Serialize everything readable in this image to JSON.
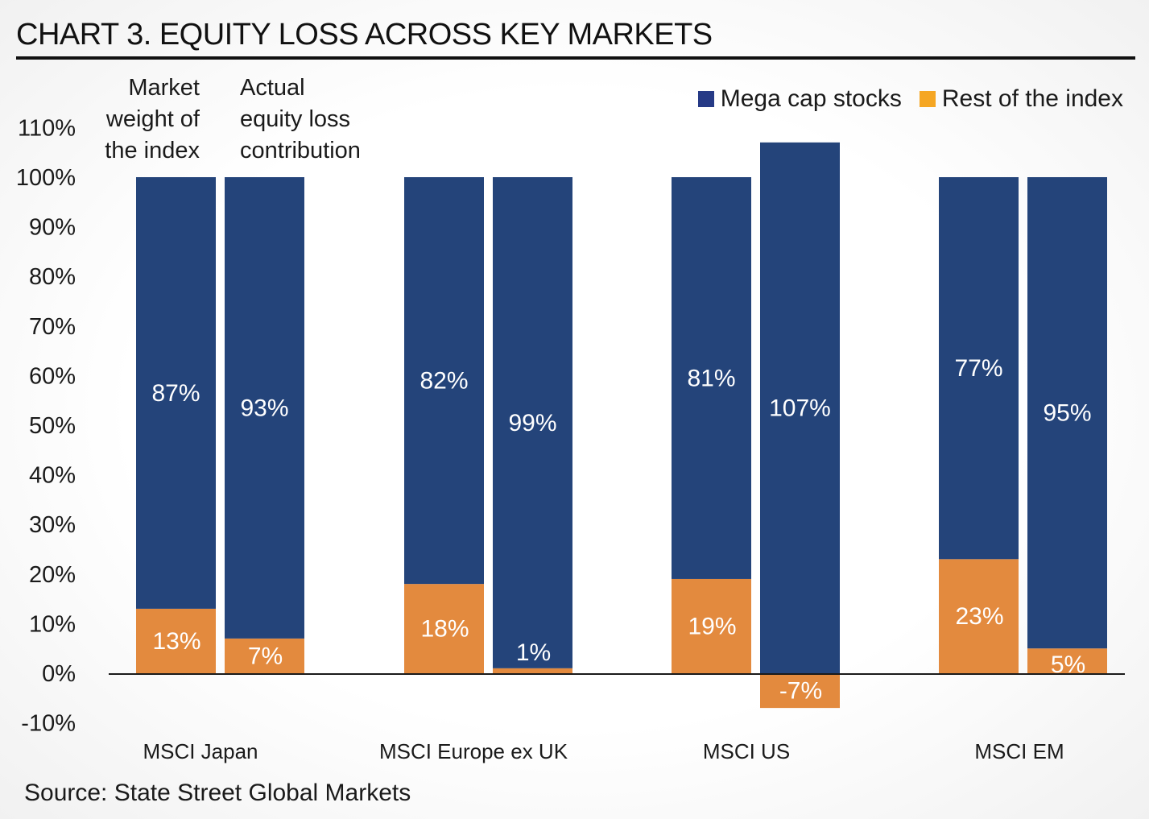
{
  "title": "CHART 3. EQUITY LOSS ACROSS KEY MARKETS",
  "source": "Source: State Street Global Markets",
  "annotations": {
    "market_weight": "Market\nweight of\nthe index",
    "actual_loss": "Actual\nequity loss\ncontribution"
  },
  "colors": {
    "mega": "#24447a",
    "rest": "#e38a3e",
    "legend_mega": "#263a86",
    "legend_rest": "#f5a623"
  },
  "chart_data": {
    "type": "bar",
    "stacked": true,
    "title": "CHART 3. EQUITY LOSS ACROSS KEY MARKETS",
    "xlabel": "",
    "ylabel": "",
    "ylim": [
      -10,
      110
    ],
    "yticks": [
      -10,
      0,
      10,
      20,
      30,
      40,
      50,
      60,
      70,
      80,
      90,
      100,
      110
    ],
    "ytick_labels": [
      "-10%",
      "0%",
      "10%",
      "20%",
      "30%",
      "40%",
      "50%",
      "60%",
      "70%",
      "80%",
      "90%",
      "100%",
      "110%"
    ],
    "categories": [
      "MSCI Japan",
      "MSCI Europe ex UK",
      "MSCI US",
      "MSCI EM"
    ],
    "bar_groups": [
      "Market weight of the index",
      "Actual equity loss contribution"
    ],
    "legend": [
      "Mega cap stocks",
      "Rest of the index"
    ],
    "legend_position": "top-right",
    "series": [
      {
        "name": "Mega cap stocks",
        "market_weight": [
          87,
          82,
          81,
          77
        ],
        "actual_loss": [
          93,
          99,
          107,
          95
        ]
      },
      {
        "name": "Rest of the index",
        "market_weight": [
          13,
          18,
          19,
          23
        ],
        "actual_loss": [
          7,
          1,
          -7,
          5
        ]
      }
    ]
  }
}
